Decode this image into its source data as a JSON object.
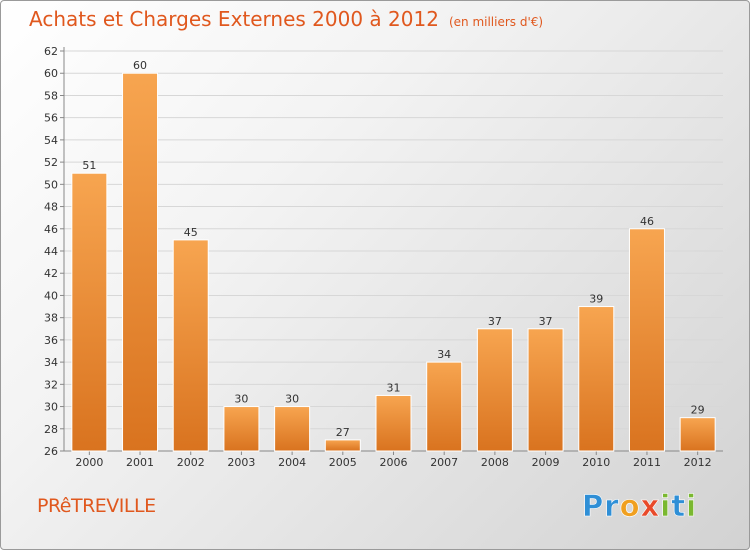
{
  "header": {
    "title": "Achats et Charges Externes 2000 à 2012",
    "subtitle": "(en milliers d'€)"
  },
  "footer": {
    "commune": "PRêTREVILLE",
    "logo_letters": [
      {
        "ch": "P",
        "color": "#2f8fd6"
      },
      {
        "ch": "r",
        "color": "#2f8fd6"
      },
      {
        "ch": "o",
        "color": "#f0a020"
      },
      {
        "ch": "x",
        "color": "#e84a2a"
      },
      {
        "ch": "i",
        "color": "#7ab830"
      },
      {
        "ch": "t",
        "color": "#2f8fd6"
      },
      {
        "ch": "i",
        "color": "#7ab830"
      }
    ]
  },
  "chart_data": {
    "type": "bar",
    "title": "Achats et Charges Externes 2000 à 2012",
    "subtitle": "(en milliers d'€)",
    "xlabel": "",
    "ylabel": "",
    "categories": [
      "2000",
      "2001",
      "2002",
      "2003",
      "2004",
      "2005",
      "2006",
      "2007",
      "2008",
      "2009",
      "2010",
      "2011",
      "2012"
    ],
    "values": [
      51,
      60,
      45,
      30,
      30,
      27,
      31,
      34,
      37,
      37,
      39,
      46,
      29
    ],
    "ylim": [
      26,
      62
    ],
    "yticks": [
      26,
      28,
      30,
      32,
      34,
      36,
      38,
      40,
      42,
      44,
      46,
      48,
      50,
      52,
      54,
      56,
      58,
      60,
      62
    ],
    "grid": true,
    "data_labels": true,
    "bar_color_top": "#f7a550",
    "bar_color_bottom": "#d9731f"
  }
}
